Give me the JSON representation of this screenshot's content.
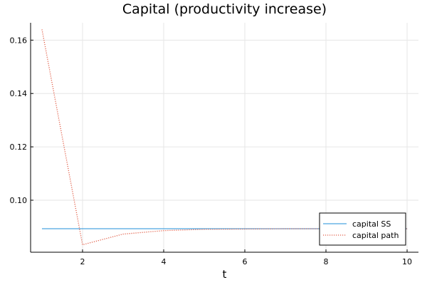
{
  "chart_data": {
    "type": "line",
    "title": "Capital (productivity increase)",
    "xlabel": "t",
    "ylabel": "",
    "xlim": [
      0.72,
      10.28
    ],
    "ylim": [
      0.0805,
      0.1665
    ],
    "xticks": [
      2,
      4,
      6,
      8,
      10
    ],
    "xtick_labels": [
      "2",
      "4",
      "6",
      "8",
      "10"
    ],
    "yticks": [
      0.1,
      0.12,
      0.14,
      0.16
    ],
    "ytick_labels": [
      "0.10",
      "0.12",
      "0.14",
      "0.16"
    ],
    "grid": true,
    "legend_position": "bottom-right",
    "x": [
      1,
      2,
      3,
      4,
      5,
      6,
      7,
      8,
      9,
      10
    ],
    "series": [
      {
        "name": "capital SS",
        "color": "#1f8fd8",
        "dash": "solid",
        "values": [
          0.0893,
          0.0893,
          0.0893,
          0.0893,
          0.0893,
          0.0893,
          0.0893,
          0.0893,
          0.0893,
          0.0893
        ]
      },
      {
        "name": "capital path",
        "color": "#e2604a",
        "dash": "dotted",
        "values": [
          0.164,
          0.0833,
          0.0873,
          0.0886,
          0.0891,
          0.0892,
          0.0893,
          0.0893,
          0.0893,
          0.0893
        ]
      }
    ]
  }
}
